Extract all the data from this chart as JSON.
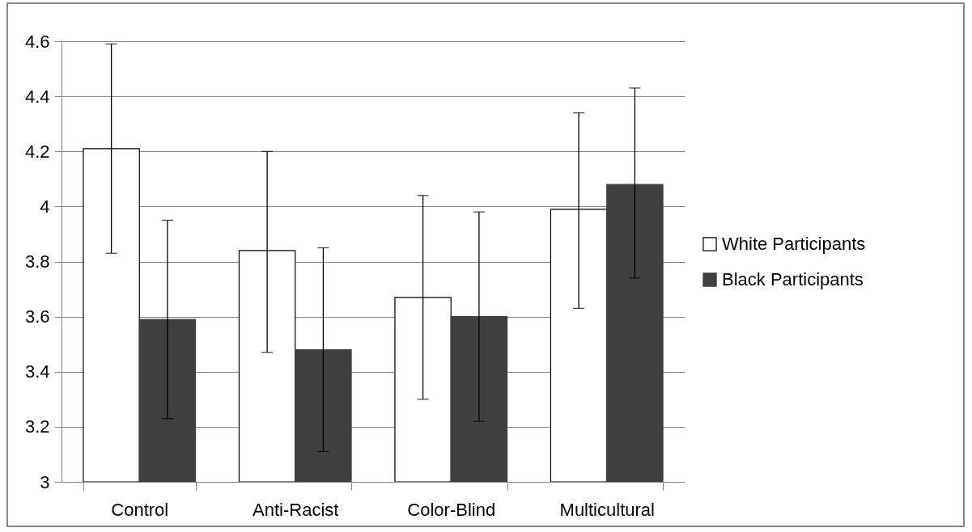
{
  "chart_data": {
    "type": "bar",
    "categories": [
      "Control",
      "Anti-Racist",
      "Color-Blind",
      "Multicultural"
    ],
    "series": [
      {
        "name": "White Participants",
        "color": "#ffffff",
        "values": [
          4.21,
          3.84,
          3.67,
          3.99
        ],
        "errors": [
          [
            3.83,
            4.59
          ],
          [
            3.47,
            4.2
          ],
          [
            3.3,
            4.04
          ],
          [
            3.63,
            4.34
          ]
        ]
      },
      {
        "name": "Black Participants",
        "color": "#404040",
        "values": [
          3.59,
          3.48,
          3.6,
          4.08
        ],
        "errors": [
          [
            3.23,
            3.95
          ],
          [
            3.11,
            3.85
          ],
          [
            3.22,
            3.98
          ],
          [
            3.74,
            4.43
          ]
        ]
      }
    ],
    "ylim": [
      3,
      4.6
    ],
    "yticks": [
      3,
      3.2,
      3.4,
      3.6,
      3.8,
      4,
      4.2,
      4.4,
      4.6
    ],
    "grid": "y",
    "legend": "right"
  }
}
